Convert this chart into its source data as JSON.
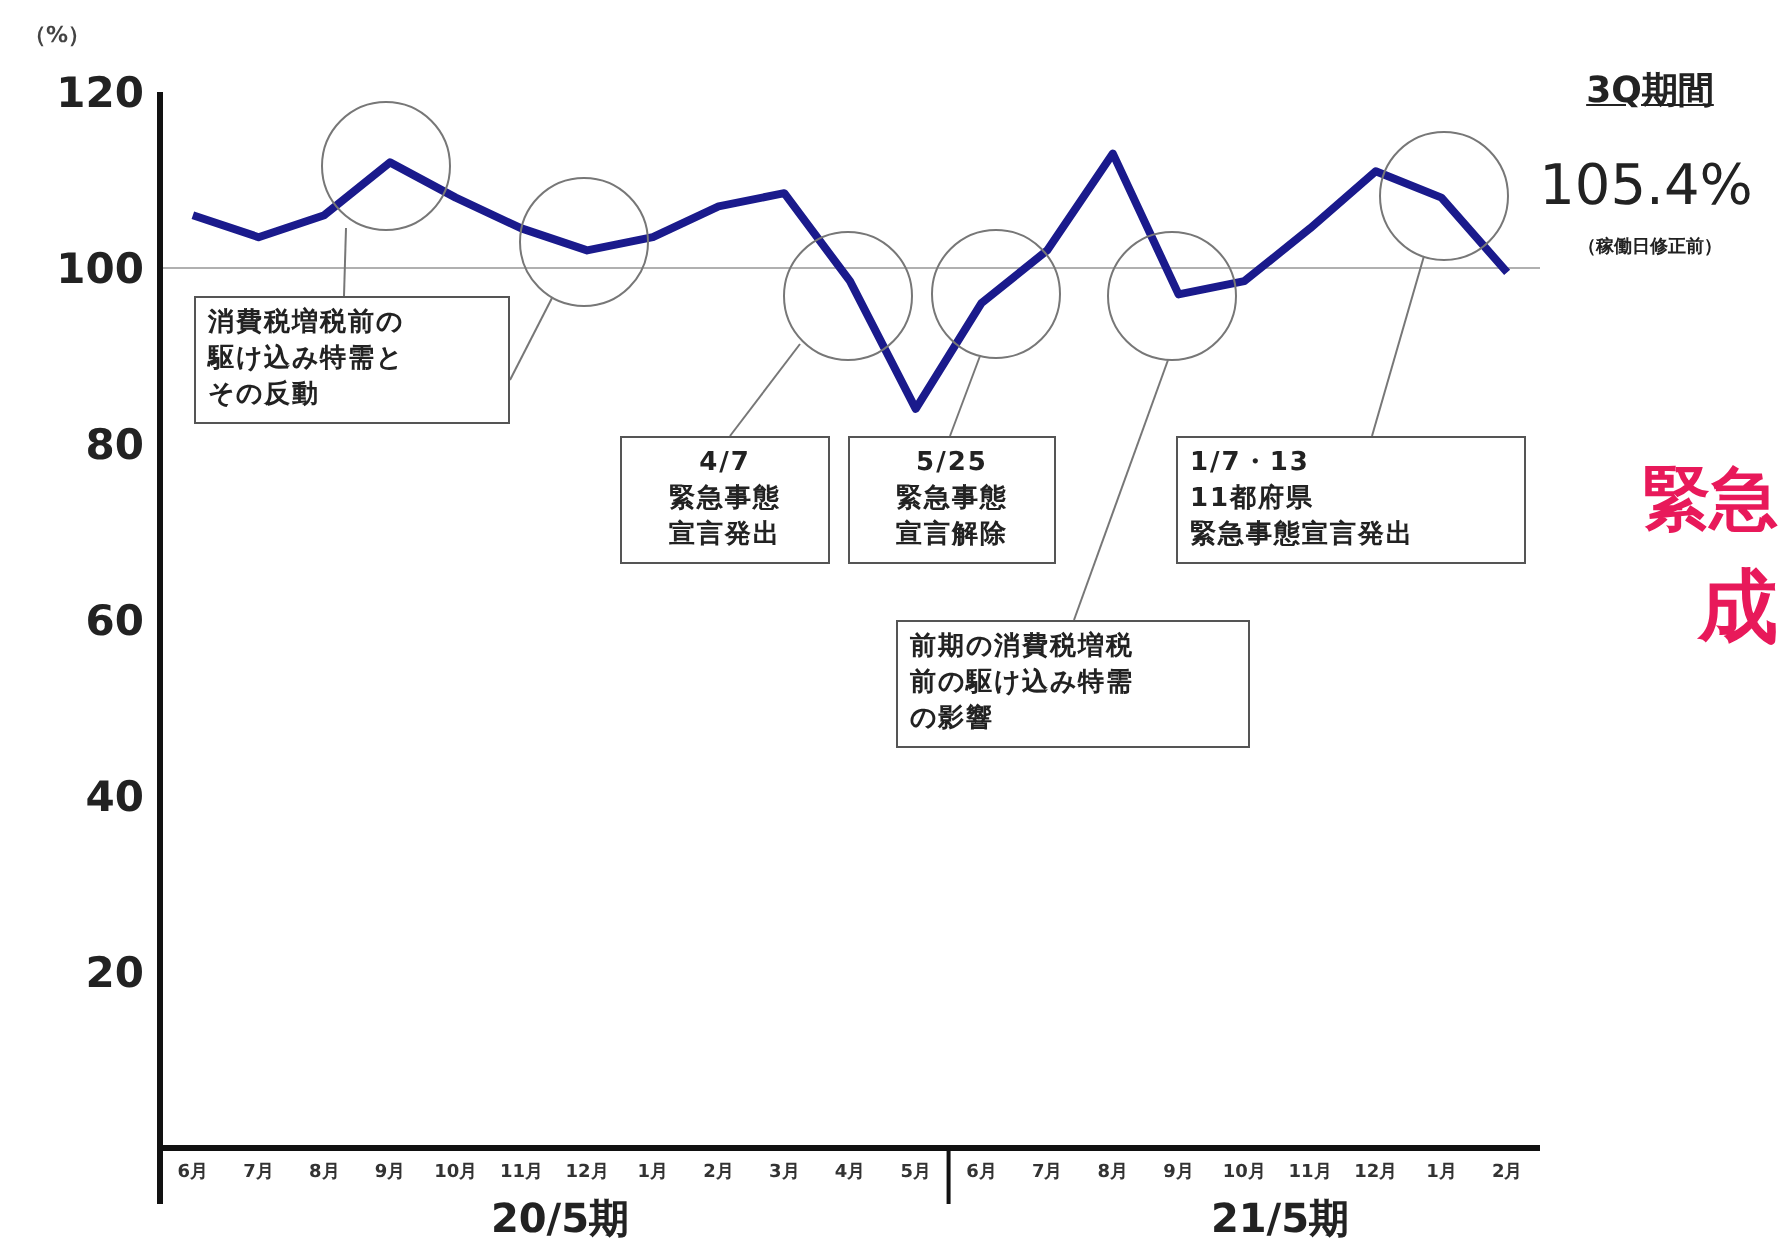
{
  "chart_data": {
    "type": "line",
    "ylabel": "（%）",
    "categories": [
      "6月",
      "7月",
      "8月",
      "9月",
      "10月",
      "11月",
      "12月",
      "1月",
      "2月",
      "3月",
      "4月",
      "5月",
      "6月",
      "7月",
      "8月",
      "9月",
      "10月",
      "11月",
      "12月",
      "1月",
      "2月"
    ],
    "series": [
      {
        "color": "#1a1a8c",
        "values": [
          106,
          103.5,
          106,
          112,
          108,
          104.5,
          102,
          103.5,
          107,
          108.5,
          98.5,
          84,
          96,
          102,
          113,
          97,
          98.5,
          104.5,
          111,
          108,
          99.5
        ]
      }
    ],
    "ylim": [
      0,
      120
    ],
    "yticks": [
      20,
      40,
      60,
      80,
      100,
      120
    ],
    "marker": "none",
    "line_style": "solid",
    "ref_lines": [
      {
        "axis": "y",
        "value": 100,
        "color": "#b0b0b0"
      }
    ],
    "annotations": [
      "消費税増税前の駆け込み特需とその反動",
      "4/7緊急事態宣言発出",
      "5/25緊急事態宣言解除",
      "1/7・1311都府県緊急事態宣言発出",
      "前期の消費税増税前の駆け込み特需の影響",
      "3Q期間",
      "105.4%",
      "（稼働日修正前）",
      "緊急",
      "成",
      "20/5期",
      "21/5期"
    ]
  }
}
